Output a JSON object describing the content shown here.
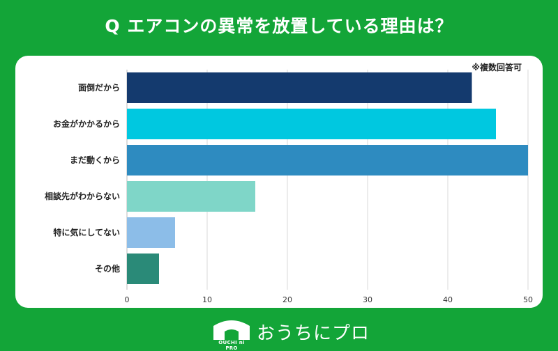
{
  "header": {
    "title": "Q エアコンの異常を放置している理由は？"
  },
  "note": "※複数回答可",
  "colors": {
    "background": "#13a538",
    "card": "#ffffff"
  },
  "brand": {
    "name": "おうちにプロ",
    "sub": "OUCHI ni PRO",
    "logo_icon": "house-icon"
  },
  "chart_data": {
    "type": "bar",
    "orientation": "horizontal",
    "title": "Q エアコンの異常を放置している理由は？",
    "categories": [
      "面倒だから",
      "お金がかかるから",
      "まだ動くから",
      "相談先がわからない",
      "特に気にしてない",
      "その他"
    ],
    "values": [
      43,
      46,
      50,
      16,
      6,
      4
    ],
    "colors": [
      "#143a6e",
      "#00c8e0",
      "#2e8bc0",
      "#7fd6c8",
      "#8cbde8",
      "#2a8a78"
    ],
    "xlim": [
      0,
      50
    ],
    "xticks": [
      0,
      10,
      20,
      30,
      40,
      50
    ],
    "grid": true
  }
}
